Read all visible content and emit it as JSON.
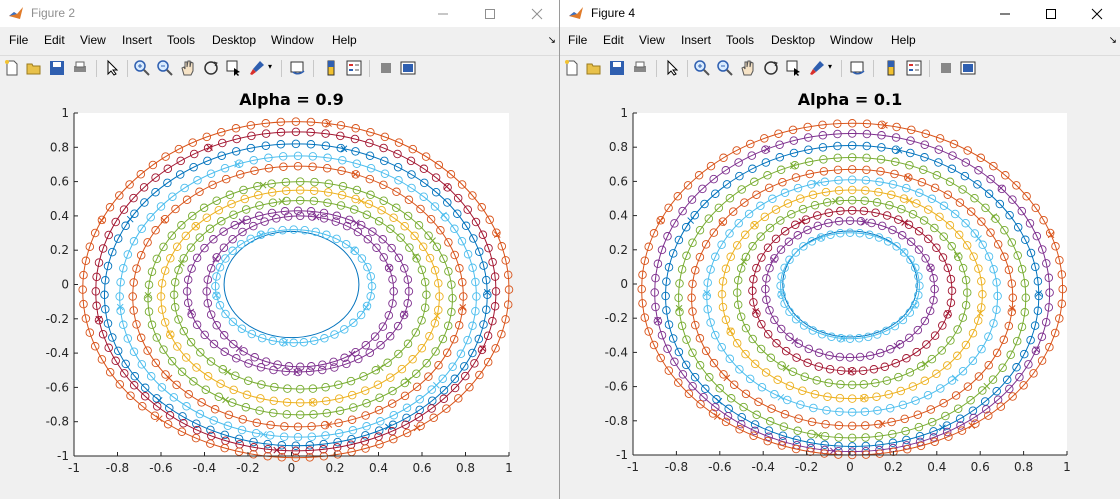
{
  "windows": [
    {
      "id": "left",
      "title": "Figure 2",
      "active": false,
      "menu": [
        "File",
        "Edit",
        "View",
        "Insert",
        "Tools",
        "Desktop",
        "Window",
        "Help"
      ],
      "chart_data": {
        "type": "scatter",
        "title": "Alpha = 0.9",
        "xlim": [
          -1,
          1
        ],
        "ylim": [
          -1,
          1
        ],
        "xticks": [
          "-1",
          "-0.8",
          "-0.6",
          "-0.4",
          "-0.2",
          "0",
          "0.2",
          "0.4",
          "0.6",
          "0.8",
          "1"
        ],
        "yticks": [
          "1",
          "0.8",
          "0.6",
          "0.4",
          "0.2",
          "0",
          "-0.2",
          "-0.4",
          "-0.6",
          "-0.8",
          "-1"
        ],
        "grid": false,
        "series": [
          {
            "color": "#0072bd",
            "values": [
              {
                "rx": 0.31,
                "ry": 0.31,
                "cx": 0,
                "cy": 0
              }
            ]
          },
          {
            "color": "#4dbeee",
            "values": [
              {
                "rx": 0.36,
                "ry": 0.33,
                "cx": 0.01,
                "cy": -0.01
              }
            ]
          },
          {
            "color": "#7e2f8e",
            "values": [
              {
                "rx": 0.43,
                "ry": 0.44,
                "cx": 0.04,
                "cy": -0.04
              }
            ]
          },
          {
            "color": "#7e2f8e",
            "values": [
              {
                "rx": 0.51,
                "ry": 0.47,
                "cx": 0.03,
                "cy": -0.04
              }
            ]
          },
          {
            "color": "#77ac30",
            "values": [
              {
                "rx": 0.58,
                "ry": 0.55,
                "cx": 0.04,
                "cy": -0.06
              }
            ]
          },
          {
            "color": "#edb120",
            "values": [
              {
                "rx": 0.64,
                "ry": 0.62,
                "cx": 0.04,
                "cy": -0.07
              }
            ]
          },
          {
            "color": "#77ac30",
            "values": [
              {
                "rx": 0.7,
                "ry": 0.68,
                "cx": 0.04,
                "cy": -0.08
              }
            ]
          },
          {
            "color": "#d95319",
            "values": [
              {
                "rx": 0.76,
                "ry": 0.76,
                "cx": 0.03,
                "cy": -0.07
              }
            ]
          },
          {
            "color": "#4dbeee",
            "values": [
              {
                "rx": 0.82,
                "ry": 0.82,
                "cx": 0.03,
                "cy": -0.07
              }
            ]
          },
          {
            "color": "#0072bd",
            "values": [
              {
                "rx": 0.88,
                "ry": 0.88,
                "cx": 0.02,
                "cy": -0.06
              }
            ]
          },
          {
            "color": "#a2142f",
            "values": [
              {
                "rx": 0.92,
                "ry": 0.93,
                "cx": 0.02,
                "cy": -0.04
              }
            ]
          },
          {
            "color": "#d95319",
            "values": [
              {
                "rx": 0.98,
                "ry": 0.98,
                "cx": 0.02,
                "cy": -0.03
              }
            ]
          }
        ]
      }
    },
    {
      "id": "right",
      "title": "Figure 4",
      "active": true,
      "menu": [
        "File",
        "Edit",
        "View",
        "Insert",
        "Tools",
        "Desktop",
        "Window",
        "Help"
      ],
      "chart_data": {
        "type": "scatter",
        "title": "Alpha = 0.1",
        "xlim": [
          -1,
          1
        ],
        "ylim": [
          -1,
          1
        ],
        "xticks": [
          "-1",
          "-0.8",
          "-0.6",
          "-0.4",
          "-0.2",
          "0",
          "0.2",
          "0.4",
          "0.6",
          "0.8",
          "1"
        ],
        "yticks": [
          "1",
          "0.8",
          "0.6",
          "0.4",
          "0.2",
          "0",
          "-0.2",
          "-0.4",
          "-0.6",
          "-0.8",
          "-1"
        ],
        "grid": false,
        "series": [
          {
            "color": "#0072bd",
            "values": [
              {
                "rx": 0.31,
                "ry": 0.31,
                "cx": 0,
                "cy": 0
              }
            ]
          },
          {
            "color": "#4dbeee",
            "values": [
              {
                "rx": 0.32,
                "ry": 0.31,
                "cx": 0,
                "cy": -0.01
              }
            ]
          },
          {
            "color": "#7e2f8e",
            "values": [
              {
                "rx": 0.39,
                "ry": 0.4,
                "cx": 0,
                "cy": -0.03
              }
            ]
          },
          {
            "color": "#a2142f",
            "values": [
              {
                "rx": 0.46,
                "ry": 0.47,
                "cx": 0.01,
                "cy": -0.04
              }
            ]
          },
          {
            "color": "#77ac30",
            "values": [
              {
                "rx": 0.53,
                "ry": 0.54,
                "cx": 0.01,
                "cy": -0.05
              }
            ]
          },
          {
            "color": "#edb120",
            "values": [
              {
                "rx": 0.6,
                "ry": 0.61,
                "cx": 0.01,
                "cy": -0.06
              }
            ]
          },
          {
            "color": "#4dbeee",
            "values": [
              {
                "rx": 0.67,
                "ry": 0.68,
                "cx": 0.01,
                "cy": -0.07
              }
            ]
          },
          {
            "color": "#d95319",
            "values": [
              {
                "rx": 0.74,
                "ry": 0.75,
                "cx": 0.01,
                "cy": -0.08
              }
            ]
          },
          {
            "color": "#77ac30",
            "values": [
              {
                "rx": 0.8,
                "ry": 0.82,
                "cx": 0.01,
                "cy": -0.08
              }
            ]
          },
          {
            "color": "#0072bd",
            "values": [
              {
                "rx": 0.86,
                "ry": 0.88,
                "cx": 0.01,
                "cy": -0.07
              }
            ]
          },
          {
            "color": "#7e2f8e",
            "values": [
              {
                "rx": 0.91,
                "ry": 0.93,
                "cx": 0.01,
                "cy": -0.05
              }
            ]
          },
          {
            "color": "#d95319",
            "values": [
              {
                "rx": 0.97,
                "ry": 0.97,
                "cx": 0.01,
                "cy": -0.03
              }
            ]
          }
        ]
      }
    }
  ]
}
